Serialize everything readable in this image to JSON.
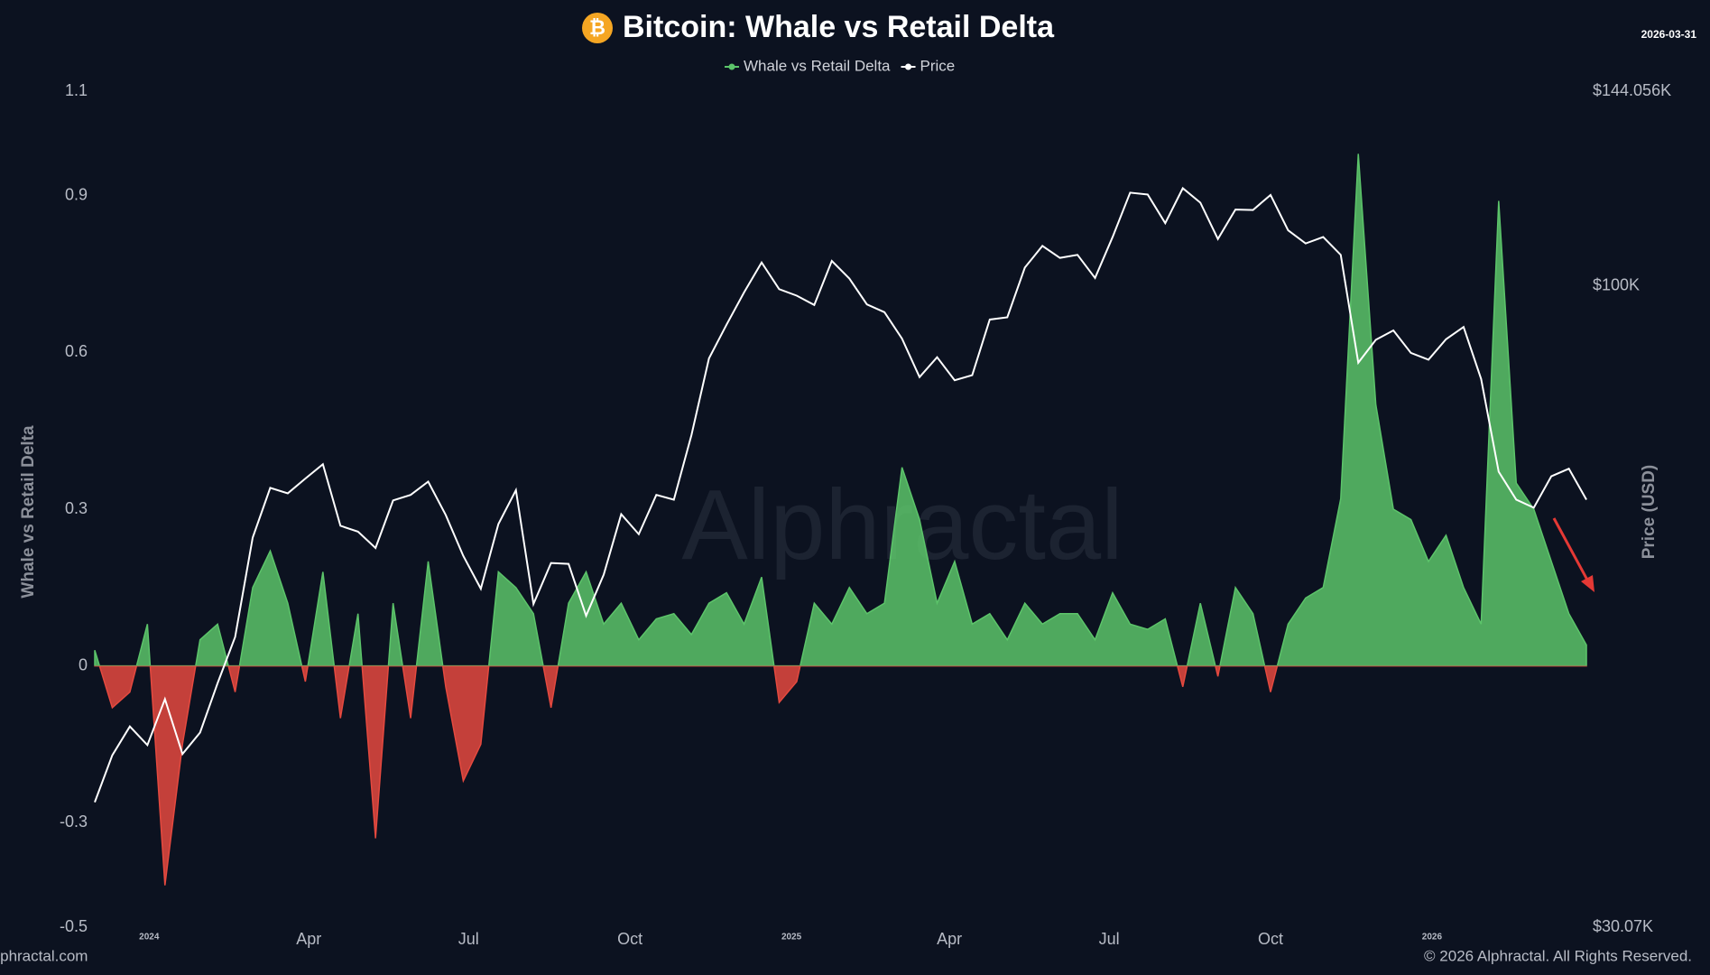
{
  "chart_data": {
    "type": "area-line",
    "title": "Bitcoin: Whale vs Retail Delta",
    "icon": "₿",
    "date": "2026-03-31",
    "watermark": "Alphractal",
    "footer_left": "Alphractal.com",
    "footer_right": "© 2026 Alphractal. All Rights Reserved.",
    "ylabel": "Whale vs Retail Delta",
    "y2label": "Price (USD)",
    "y2scale": "log",
    "grid": false,
    "legend": "top",
    "xlim": [
      "2023-12-01",
      "2026-03-31"
    ],
    "xticks": [
      {
        "value": "2024-01-01",
        "label": "2024"
      },
      {
        "value": "2024-04-01",
        "label": "Apr"
      },
      {
        "value": "2024-07-01",
        "label": "Jul"
      },
      {
        "value": "2024-10-01",
        "label": "Oct"
      },
      {
        "value": "2025-01-01",
        "label": "2025"
      },
      {
        "value": "2025-04-01",
        "label": "Apr"
      },
      {
        "value": "2025-07-01",
        "label": "Jul"
      },
      {
        "value": "2025-10-01",
        "label": "Oct"
      },
      {
        "value": "2026-01-01",
        "label": "2026"
      }
    ],
    "ylim": [
      -0.5,
      1.1
    ],
    "yticks": [
      -0.5,
      -0.3,
      0,
      0.3,
      0.6,
      0.9,
      1.1
    ],
    "y2lim": [
      30070,
      144056
    ],
    "y2ticks": [
      {
        "value": 30070,
        "label": "$30.07K"
      },
      {
        "value": 100000,
        "label": "$100K"
      },
      {
        "value": 144056,
        "label": "$144.056K"
      }
    ],
    "x": [
      "2023-12-01",
      "2023-12-11",
      "2023-12-21",
      "2023-12-31",
      "2024-01-10",
      "2024-01-20",
      "2024-01-30",
      "2024-02-09",
      "2024-02-19",
      "2024-02-29",
      "2024-03-10",
      "2024-03-20",
      "2024-03-30",
      "2024-04-09",
      "2024-04-19",
      "2024-04-29",
      "2024-05-09",
      "2024-05-19",
      "2024-05-29",
      "2024-06-08",
      "2024-06-18",
      "2024-06-28",
      "2024-07-08",
      "2024-07-18",
      "2024-07-28",
      "2024-08-07",
      "2024-08-17",
      "2024-08-27",
      "2024-09-06",
      "2024-09-16",
      "2024-09-26",
      "2024-10-06",
      "2024-10-16",
      "2024-10-26",
      "2024-11-05",
      "2024-11-15",
      "2024-11-25",
      "2024-12-05",
      "2024-12-15",
      "2024-12-25",
      "2025-01-04",
      "2025-01-14",
      "2025-01-24",
      "2025-02-03",
      "2025-02-13",
      "2025-02-23",
      "2025-03-05",
      "2025-03-15",
      "2025-03-25",
      "2025-04-04",
      "2025-04-14",
      "2025-04-24",
      "2025-05-04",
      "2025-05-14",
      "2025-05-24",
      "2025-06-03",
      "2025-06-13",
      "2025-06-23",
      "2025-07-03",
      "2025-07-13",
      "2025-07-23",
      "2025-08-02",
      "2025-08-12",
      "2025-08-22",
      "2025-09-01",
      "2025-09-11",
      "2025-09-21",
      "2025-10-01",
      "2025-10-11",
      "2025-10-21",
      "2025-10-31",
      "2025-11-10",
      "2025-11-20",
      "2025-11-30",
      "2025-12-10",
      "2025-12-20",
      "2025-12-30",
      "2026-01-09",
      "2026-01-19",
      "2026-01-29",
      "2026-02-08",
      "2026-02-18",
      "2026-02-28",
      "2026-03-10",
      "2026-03-20",
      "2026-03-30"
    ],
    "series": [
      {
        "name": "Whale vs Retail Delta",
        "color": "#5cc46a",
        "negative_color": "#e5493f",
        "values": [
          0.03,
          -0.08,
          -0.05,
          0.08,
          -0.42,
          -0.15,
          0.05,
          0.08,
          -0.05,
          0.15,
          0.22,
          0.12,
          -0.03,
          0.18,
          -0.1,
          0.1,
          -0.33,
          0.12,
          -0.1,
          0.2,
          -0.04,
          -0.22,
          -0.15,
          0.18,
          0.15,
          0.1,
          -0.08,
          0.12,
          0.18,
          0.08,
          0.12,
          0.05,
          0.09,
          0.1,
          0.06,
          0.12,
          0.14,
          0.08,
          0.17,
          -0.07,
          -0.03,
          0.12,
          0.08,
          0.15,
          0.1,
          0.12,
          0.38,
          0.28,
          0.12,
          0.2,
          0.08,
          0.1,
          0.05,
          0.12,
          0.08,
          0.1,
          0.1,
          0.05,
          0.14,
          0.08,
          0.07,
          0.09,
          -0.04,
          0.12,
          -0.02,
          0.15,
          0.1,
          -0.05,
          0.08,
          0.13,
          0.15,
          0.32,
          0.98,
          0.5,
          0.3,
          0.28,
          0.2,
          0.25,
          0.15,
          0.08,
          0.89,
          0.35,
          0.3,
          0.2,
          0.1,
          0.04
        ]
      },
      {
        "name": "Price",
        "color": "#ffffff",
        "axis": "y2",
        "values": [
          38000,
          41500,
          43800,
          42300,
          46100,
          41600,
          43300,
          47500,
          51800,
          62400,
          68500,
          67800,
          69700,
          71600,
          63800,
          63100,
          61200,
          66900,
          67600,
          69300,
          65100,
          60300,
          56700,
          64000,
          68200,
          55100,
          59500,
          59400,
          53900,
          58200,
          65200,
          62800,
          67600,
          67000,
          75600,
          87300,
          93000,
          98800,
          104500,
          99400,
          98200,
          96500,
          104800,
          101400,
          96600,
          95200,
          90600,
          84300,
          87500,
          83800,
          84600,
          93900,
          94300,
          103500,
          107800,
          105400,
          106000,
          101500,
          109600,
          119100,
          118700,
          112500,
          120100,
          116900,
          109200,
          115400,
          115300,
          118600,
          111000,
          108300,
          109600,
          106000,
          86600,
          90400,
          92000,
          88200,
          87100,
          90500,
          92600,
          84000,
          70600,
          67000,
          66000,
          70000,
          71000,
          67000
        ]
      }
    ]
  }
}
